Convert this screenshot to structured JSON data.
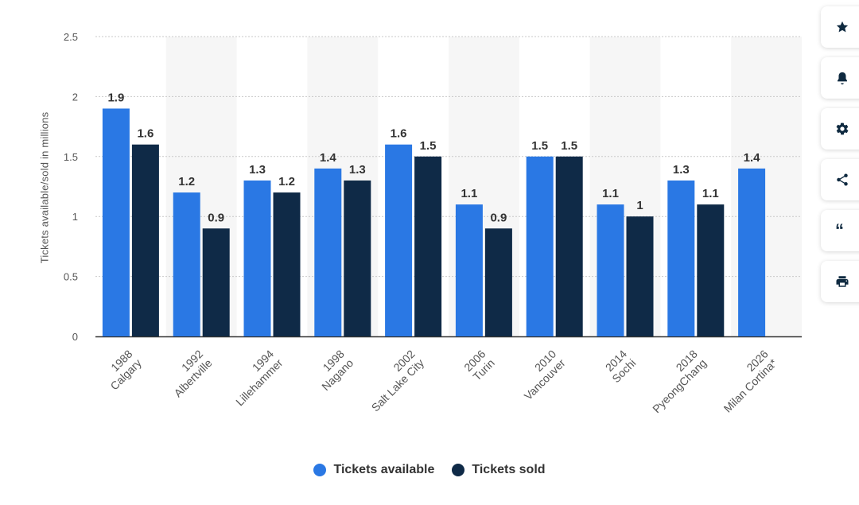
{
  "chart_data": {
    "type": "bar",
    "title": "",
    "xlabel": "",
    "ylabel": "Tickets available/sold in millions",
    "ylim": [
      0,
      2.5
    ],
    "yticks": [
      0,
      0.5,
      1,
      1.5,
      2,
      2.5
    ],
    "categories": [
      [
        "1988",
        "Calgary"
      ],
      [
        "1992",
        "Albertville"
      ],
      [
        "1994",
        "Lillehammer"
      ],
      [
        "1998",
        "Nagano"
      ],
      [
        "2002",
        "Salt Lake City"
      ],
      [
        "2006",
        "Turin"
      ],
      [
        "2010",
        "Vancouver"
      ],
      [
        "2014",
        "Sochi"
      ],
      [
        "2018",
        "PyeongChang"
      ],
      [
        "2026",
        "Milan Cortina*"
      ]
    ],
    "series": [
      {
        "name": "Tickets available",
        "color": "#2a78e4",
        "values": [
          1.9,
          1.2,
          1.3,
          1.4,
          1.6,
          1.1,
          1.5,
          1.1,
          1.3,
          1.4
        ],
        "labels": [
          "1.9",
          "1.2",
          "1.3",
          "1.4",
          "1.6",
          "1.1",
          "1.5",
          "1.1",
          "1.3",
          "1.4"
        ]
      },
      {
        "name": "Tickets sold",
        "color": "#0f2a47",
        "values": [
          1.6,
          0.9,
          1.2,
          1.3,
          1.5,
          0.9,
          1.5,
          1.0,
          1.1,
          null
        ],
        "labels": [
          "1.6",
          "0.9",
          "1.2",
          "1.3",
          "1.5",
          "0.9",
          "1.5",
          "1",
          "1.1",
          ""
        ]
      }
    ],
    "grid": true,
    "legend_position": "bottom-center"
  },
  "legend": {
    "available_label": "Tickets available",
    "sold_label": "Tickets sold",
    "available_color": "#2a78e4",
    "sold_color": "#0f2a47"
  },
  "toolbar": {
    "items": [
      "star-icon",
      "bell-icon",
      "gear-icon",
      "share-icon",
      "quote-icon",
      "print-icon"
    ],
    "quote_glyph": "“"
  }
}
